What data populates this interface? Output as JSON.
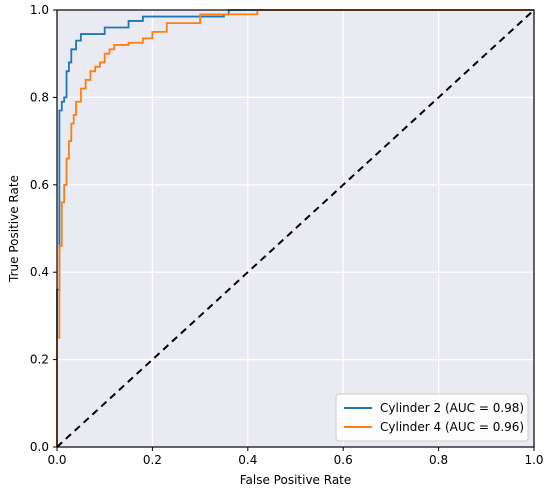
{
  "chart_data": {
    "type": "line",
    "xlabel": "False Positive Rate",
    "ylabel": "True Positive Rate",
    "xlim": [
      0,
      1
    ],
    "ylim": [
      0,
      1
    ],
    "xticks": [
      "0.0",
      "0.2",
      "0.4",
      "0.6",
      "0.8",
      "1.0"
    ],
    "yticks": [
      "0.0",
      "0.2",
      "0.4",
      "0.6",
      "0.8",
      "1.0"
    ],
    "grid": true,
    "legend_position": "bottom-right",
    "background_color": "#eaeaf2",
    "grid_color": "#ffffff",
    "series": [
      {
        "name": "Cylinder 2 (AUC = 0.98)",
        "color": "#1f77b4",
        "x": [
          0,
          0,
          0.005,
          0.005,
          0.01,
          0.01,
          0.015,
          0.015,
          0.02,
          0.02,
          0.025,
          0.025,
          0.03,
          0.03,
          0.04,
          0.04,
          0.05,
          0.05,
          0.1,
          0.1,
          0.15,
          0.15,
          0.18,
          0.18,
          0.25,
          0.25,
          0.35,
          0.35,
          0.36,
          0.36,
          1.0
        ],
        "y": [
          0,
          0.36,
          0.36,
          0.77,
          0.77,
          0.79,
          0.79,
          0.8,
          0.8,
          0.86,
          0.86,
          0.88,
          0.88,
          0.91,
          0.91,
          0.93,
          0.93,
          0.945,
          0.945,
          0.96,
          0.96,
          0.975,
          0.975,
          0.985,
          0.985,
          0.985,
          0.985,
          0.99,
          0.99,
          1.0,
          1.0
        ]
      },
      {
        "name": "Cylinder 4 (AUC = 0.96)",
        "color": "#ff7f0e",
        "x": [
          0,
          0,
          0.005,
          0.005,
          0.01,
          0.01,
          0.015,
          0.015,
          0.02,
          0.02,
          0.025,
          0.025,
          0.03,
          0.03,
          0.035,
          0.035,
          0.04,
          0.04,
          0.05,
          0.05,
          0.06,
          0.06,
          0.07,
          0.07,
          0.08,
          0.08,
          0.09,
          0.09,
          0.1,
          0.1,
          0.11,
          0.11,
          0.12,
          0.12,
          0.15,
          0.15,
          0.18,
          0.18,
          0.2,
          0.2,
          0.23,
          0.23,
          0.3,
          0.3,
          0.42,
          0.42,
          1.0
        ],
        "y": [
          0,
          0.25,
          0.25,
          0.46,
          0.46,
          0.56,
          0.56,
          0.6,
          0.6,
          0.66,
          0.66,
          0.7,
          0.7,
          0.74,
          0.74,
          0.76,
          0.76,
          0.79,
          0.79,
          0.82,
          0.82,
          0.84,
          0.84,
          0.86,
          0.86,
          0.87,
          0.87,
          0.88,
          0.88,
          0.9,
          0.9,
          0.91,
          0.91,
          0.92,
          0.92,
          0.925,
          0.925,
          0.935,
          0.935,
          0.95,
          0.95,
          0.97,
          0.97,
          0.99,
          0.99,
          1.0,
          1.0
        ]
      },
      {
        "name": "",
        "color": "#000000",
        "dashed": true,
        "x": [
          0,
          1
        ],
        "y": [
          0,
          1
        ]
      }
    ]
  }
}
